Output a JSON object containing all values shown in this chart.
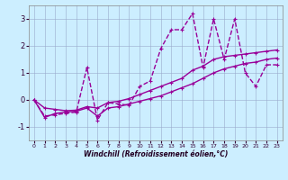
{
  "title": "",
  "xlabel": "Windchill (Refroidissement éolien,°C)",
  "background_color": "#cceeff",
  "line_color": "#990099",
  "grid_color": "#99aacc",
  "xlim": [
    -0.5,
    23.5
  ],
  "ylim": [
    -1.5,
    3.5
  ],
  "xticks": [
    0,
    1,
    2,
    3,
    4,
    5,
    6,
    7,
    8,
    9,
    10,
    11,
    12,
    13,
    14,
    15,
    16,
    17,
    18,
    19,
    20,
    21,
    22,
    23
  ],
  "yticks": [
    -1,
    0,
    1,
    2,
    3
  ],
  "series": [
    {
      "x": [
        0,
        1,
        2,
        3,
        4,
        5,
        6,
        7,
        8,
        9,
        10,
        11,
        12,
        13,
        14,
        15,
        16,
        17,
        18,
        19,
        20,
        21,
        22,
        23
      ],
      "y": [
        0.0,
        -0.6,
        -0.55,
        -0.5,
        -0.45,
        1.2,
        -0.75,
        -0.1,
        -0.15,
        -0.2,
        0.5,
        0.7,
        1.9,
        2.6,
        2.6,
        3.2,
        1.2,
        3.0,
        1.5,
        3.0,
        1.0,
        0.5,
        1.3,
        1.3
      ],
      "linestyle": "--",
      "linewidth": 1.0
    },
    {
      "x": [
        0,
        1,
        2,
        3,
        4,
        5,
        6,
        7,
        8,
        9,
        10,
        11,
        12,
        13,
        14,
        15,
        16,
        17,
        18,
        19,
        20,
        21,
        22,
        23
      ],
      "y": [
        0.0,
        -0.3,
        -0.35,
        -0.4,
        -0.38,
        -0.25,
        -0.3,
        -0.1,
        -0.05,
        0.05,
        0.2,
        0.35,
        0.5,
        0.65,
        0.8,
        1.1,
        1.25,
        1.5,
        1.6,
        1.65,
        1.7,
        1.75,
        1.8,
        1.85
      ],
      "linestyle": "-",
      "linewidth": 1.0
    },
    {
      "x": [
        0,
        1,
        2,
        3,
        4,
        5,
        6,
        7,
        8,
        9,
        10,
        11,
        12,
        13,
        14,
        15,
        16,
        17,
        18,
        19,
        20,
        21,
        22,
        23
      ],
      "y": [
        0.0,
        -0.65,
        -0.5,
        -0.45,
        -0.42,
        -0.3,
        -0.6,
        -0.3,
        -0.25,
        -0.15,
        -0.05,
        0.05,
        0.15,
        0.3,
        0.45,
        0.6,
        0.8,
        1.0,
        1.15,
        1.25,
        1.35,
        1.4,
        1.5,
        1.55
      ],
      "linestyle": "-",
      "linewidth": 1.0
    }
  ]
}
